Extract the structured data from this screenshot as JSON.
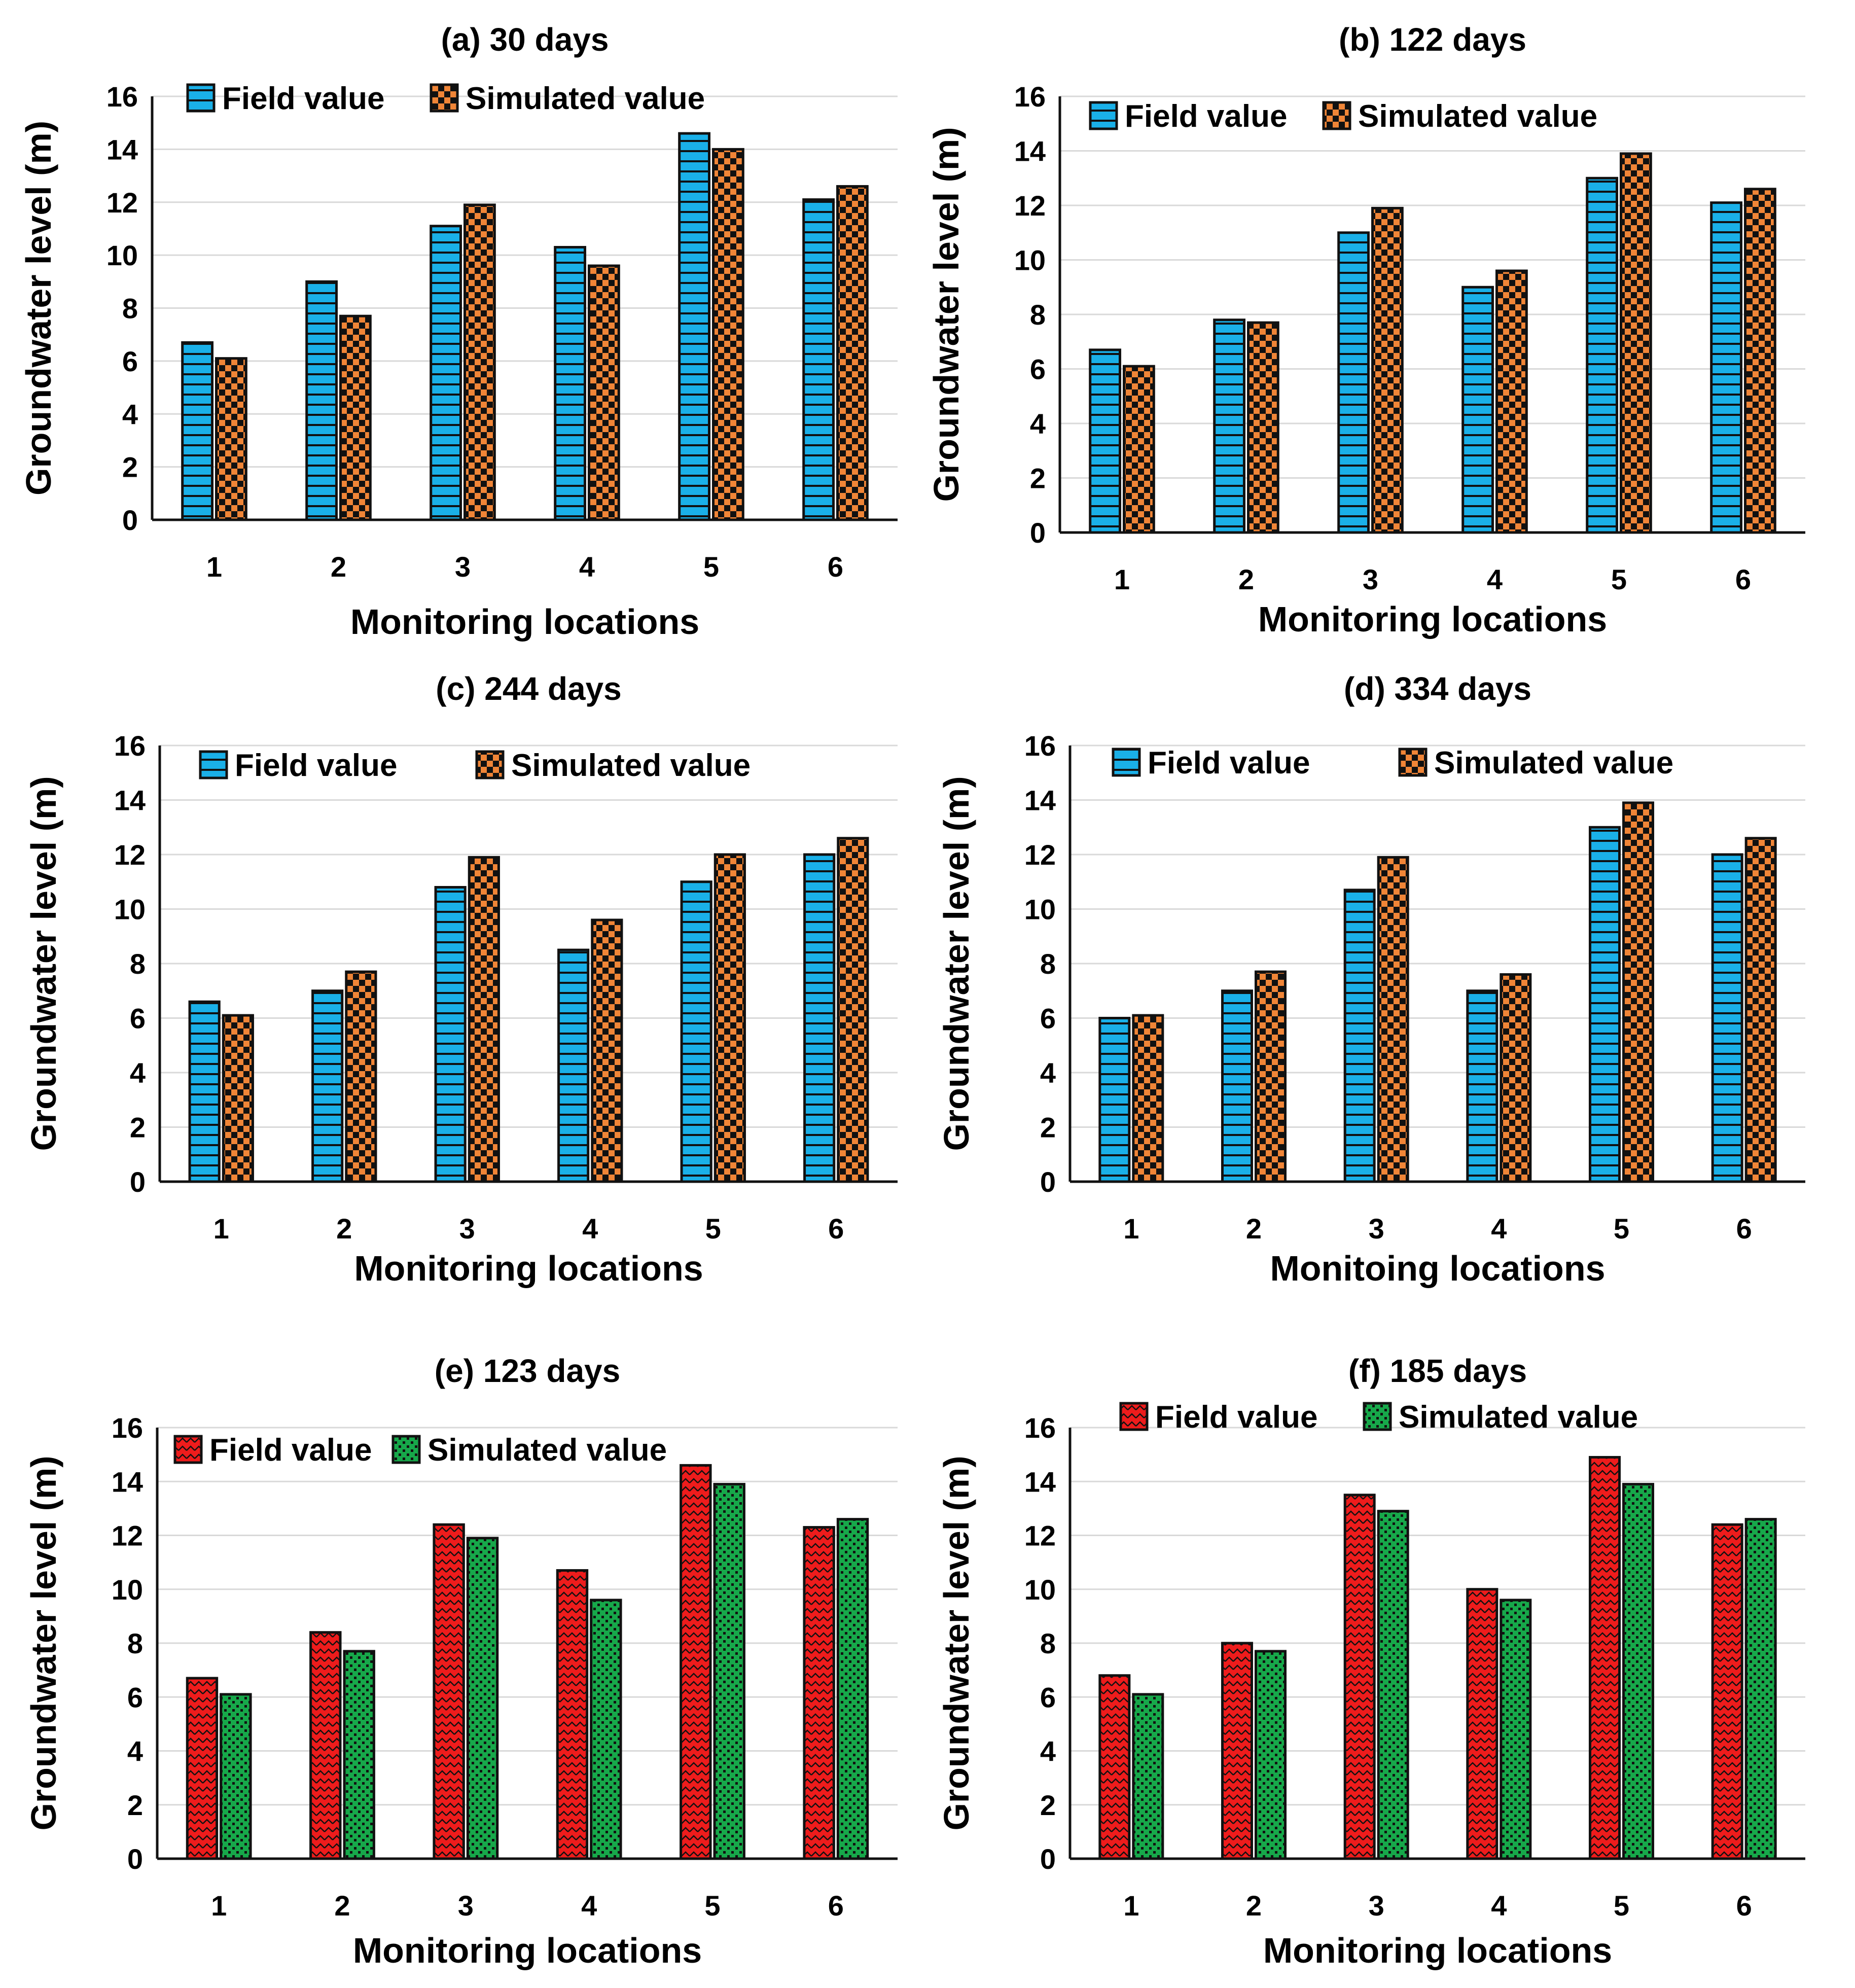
{
  "chart_data": [
    {
      "panel": "a",
      "type": "bar",
      "title": "(a) 30 days",
      "xlabel": "Monitoring locations",
      "ylabel": "Groundwater level (m)",
      "ylim": [
        0,
        16
      ],
      "yticks": [
        "0",
        "2",
        "4",
        "6",
        "8",
        "10",
        "12",
        "14",
        "16"
      ],
      "categories": [
        "1",
        "2",
        "3",
        "4",
        "5",
        "6"
      ],
      "series": [
        {
          "name": "Field value",
          "values": [
            6.7,
            9.0,
            11.1,
            10.3,
            14.6,
            12.1
          ]
        },
        {
          "name": "Simulated value",
          "values": [
            6.1,
            7.7,
            11.9,
            9.6,
            14.0,
            12.6
          ]
        }
      ],
      "legend": "top",
      "colors": {
        "field": "#1ab0e8",
        "simulated": "#f08537"
      },
      "patterns": {
        "field": "horizontal-stripes",
        "simulated": "checkerboard"
      }
    },
    {
      "panel": "b",
      "type": "bar",
      "title": "(b) 122 days",
      "xlabel": "Monitoring locations",
      "ylabel": "Groundwater level (m)",
      "ylim": [
        0,
        16
      ],
      "yticks": [
        "0",
        "2",
        "4",
        "6",
        "8",
        "10",
        "12",
        "14",
        "16"
      ],
      "categories": [
        "1",
        "2",
        "3",
        "4",
        "5",
        "6"
      ],
      "series": [
        {
          "name": "Field value",
          "values": [
            6.7,
            7.8,
            11.0,
            9.0,
            13.0,
            12.1
          ]
        },
        {
          "name": "Simulated value",
          "values": [
            6.1,
            7.7,
            11.9,
            9.6,
            13.9,
            12.6
          ]
        }
      ],
      "legend": "top",
      "colors": {
        "field": "#1ab0e8",
        "simulated": "#f08537"
      },
      "patterns": {
        "field": "horizontal-stripes",
        "simulated": "checkerboard"
      }
    },
    {
      "panel": "c",
      "type": "bar",
      "title": "(c) 244 days",
      "xlabel": "Monitoring locations",
      "ylabel": "Groundwater level (m)",
      "ylim": [
        0,
        16
      ],
      "yticks": [
        "0",
        "2",
        "4",
        "6",
        "8",
        "10",
        "12",
        "14",
        "16"
      ],
      "categories": [
        "1",
        "2",
        "3",
        "4",
        "5",
        "6"
      ],
      "series": [
        {
          "name": "Field value",
          "values": [
            6.6,
            7.0,
            10.8,
            8.5,
            11.0,
            12.0
          ]
        },
        {
          "name": "Simulated value",
          "values": [
            6.1,
            7.7,
            11.9,
            9.6,
            12.0,
            12.6
          ]
        }
      ],
      "legend": "top",
      "colors": {
        "field": "#1ab0e8",
        "simulated": "#f08537"
      },
      "patterns": {
        "field": "horizontal-stripes",
        "simulated": "checkerboard"
      }
    },
    {
      "panel": "d",
      "type": "bar",
      "title": "(d) 334 days",
      "xlabel": "Monitoing locations",
      "ylabel": "Groundwater level (m)",
      "ylim": [
        0,
        16
      ],
      "yticks": [
        "0",
        "2",
        "4",
        "6",
        "8",
        "10",
        "12",
        "14",
        "16"
      ],
      "categories": [
        "1",
        "2",
        "3",
        "4",
        "5",
        "6"
      ],
      "series": [
        {
          "name": "Field value",
          "values": [
            6.0,
            7.0,
            10.7,
            7.0,
            13.0,
            12.0
          ]
        },
        {
          "name": "Simulated value",
          "values": [
            6.1,
            7.7,
            11.9,
            7.6,
            13.9,
            12.6
          ]
        }
      ],
      "legend": "top",
      "colors": {
        "field": "#1ab0e8",
        "simulated": "#f08537"
      },
      "patterns": {
        "field": "horizontal-stripes",
        "simulated": "checkerboard"
      }
    },
    {
      "panel": "e",
      "type": "bar",
      "title": "(e) 123 days",
      "xlabel": "Monitoring locations",
      "ylabel": "Groundwater level (m)",
      "ylim": [
        0,
        16
      ],
      "yticks": [
        "0",
        "2",
        "4",
        "6",
        "8",
        "10",
        "12",
        "14",
        "16"
      ],
      "categories": [
        "1",
        "2",
        "3",
        "4",
        "5",
        "6"
      ],
      "series": [
        {
          "name": "Field value",
          "values": [
            6.7,
            8.4,
            12.4,
            10.7,
            14.6,
            12.3
          ]
        },
        {
          "name": "Simulated value",
          "values": [
            6.1,
            7.7,
            11.9,
            9.6,
            13.9,
            12.6
          ]
        }
      ],
      "legend": "top",
      "colors": {
        "field": "#ee1c1c",
        "simulated": "#17a84a"
      },
      "patterns": {
        "field": "zigzag",
        "simulated": "dots"
      }
    },
    {
      "panel": "f",
      "type": "bar",
      "title": "(f) 185 days",
      "xlabel": "Monitoring locations",
      "ylabel": "Groundwater level (m)",
      "ylim": [
        0,
        16
      ],
      "yticks": [
        "0",
        "2",
        "4",
        "6",
        "8",
        "10",
        "12",
        "14",
        "16"
      ],
      "categories": [
        "1",
        "2",
        "3",
        "4",
        "5",
        "6"
      ],
      "series": [
        {
          "name": "Field value",
          "values": [
            6.8,
            8.0,
            13.5,
            10.0,
            14.9,
            12.4
          ]
        },
        {
          "name": "Simulated value",
          "values": [
            6.1,
            7.7,
            12.9,
            9.6,
            13.9,
            12.6
          ]
        }
      ],
      "legend": "top",
      "colors": {
        "field": "#ee1c1c",
        "simulated": "#17a84a"
      },
      "patterns": {
        "field": "zigzag",
        "simulated": "dots"
      }
    }
  ]
}
